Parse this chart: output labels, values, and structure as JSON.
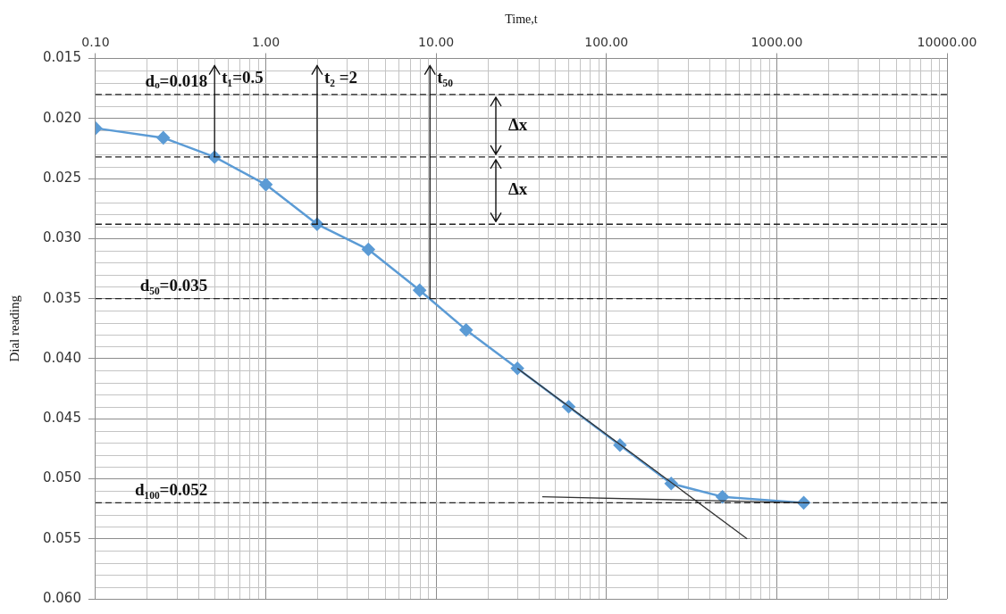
{
  "chart_data": {
    "type": "line",
    "xlabel": "Time,t",
    "ylabel": "Dial reading",
    "log": "x",
    "grid": true,
    "legend": false,
    "marker": "diamond",
    "line_style": "solid",
    "xlim": [
      0.1,
      10000
    ],
    "xticks": [
      {
        "value": 0.1,
        "label": "0.10"
      },
      {
        "value": 1,
        "label": "1.00"
      },
      {
        "value": 10,
        "label": "10.00"
      },
      {
        "value": 100,
        "label": "100.00"
      },
      {
        "value": 1000,
        "label": "1000.00"
      },
      {
        "value": 10000,
        "label": "10000.00"
      }
    ],
    "ylim": [
      0.06,
      0.015
    ],
    "yticks": [
      {
        "value": 0.015,
        "label": "0.015"
      },
      {
        "value": 0.02,
        "label": "0.020"
      },
      {
        "value": 0.025,
        "label": "0.025"
      },
      {
        "value": 0.03,
        "label": "0.030"
      },
      {
        "value": 0.035,
        "label": "0.035"
      },
      {
        "value": 0.04,
        "label": "0.040"
      },
      {
        "value": 0.045,
        "label": "0.045"
      },
      {
        "value": 0.05,
        "label": "0.050"
      },
      {
        "value": 0.055,
        "label": "0.055"
      },
      {
        "value": 0.06,
        "label": "0.060"
      }
    ],
    "series": [
      {
        "type": "line",
        "color": "#5b9bd5",
        "x": [
          0.1,
          0.25,
          0.5,
          1,
          2,
          4,
          8,
          15,
          30,
          60,
          120,
          240,
          480,
          1440
        ],
        "values": [
          0.0208,
          0.0216,
          0.0232,
          0.0255,
          0.0288,
          0.0309,
          0.0343,
          0.0376,
          0.0408,
          0.044,
          0.0472,
          0.0504,
          0.0515,
          0.052
        ]
      },
      {
        "type": "line",
        "color": "#333333",
        "marker": "none",
        "x": [
          30,
          670
        ],
        "values": [
          0.0408,
          0.055
        ]
      },
      {
        "type": "line",
        "color": "#333333",
        "marker": "none",
        "x": [
          42,
          1440
        ],
        "values": [
          0.0515,
          0.052
        ]
      }
    ],
    "ref_lines": [
      {
        "axis": "y",
        "value": 0.018,
        "label": "dₒ=0.018",
        "color": "#222222",
        "line_style": "dashed"
      },
      {
        "axis": "y",
        "value": 0.0232,
        "color": "#222222",
        "line_style": "dashed"
      },
      {
        "axis": "y",
        "value": 0.0288,
        "color": "#222222",
        "line_style": "dashed"
      },
      {
        "axis": "y",
        "value": 0.035,
        "label": "d₅₀=0.035",
        "color": "#222222",
        "line_style": "dashed"
      },
      {
        "axis": "y",
        "value": 0.052,
        "label": "d₁₀₀=0.052",
        "color": "#222222",
        "line_style": "dashed"
      },
      {
        "axis": "x",
        "value": 0.5,
        "label": "t₁=0.5",
        "color": "#111111",
        "line_style": "solid"
      },
      {
        "axis": "x",
        "value": 2,
        "label": "t₂ =2",
        "color": "#111111",
        "line_style": "solid"
      },
      {
        "axis": "x",
        "value": 9.2,
        "label": "t₅₀",
        "color": "#111111",
        "line_style": "solid"
      }
    ],
    "annotations": [
      "Δx",
      "Δx"
    ]
  }
}
